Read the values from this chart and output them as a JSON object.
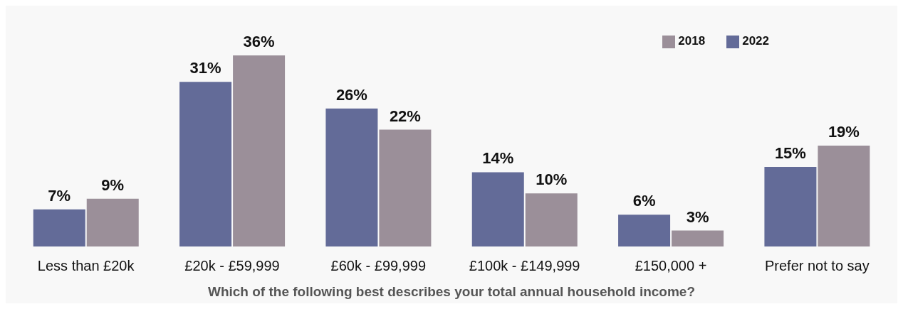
{
  "chart_data": {
    "type": "bar",
    "xlabel": "Which of the following best describes your total annual household income?",
    "categories": [
      "Less than £20k",
      "£20k - £59,999",
      "£60k - £99,999",
      "£100k - £149,999",
      "£150,000 +",
      "Prefer not to say"
    ],
    "series": [
      {
        "name": "2022",
        "color": "#636b98",
        "values": [
          7,
          31,
          26,
          14,
          6,
          15
        ],
        "value_labels": [
          "7%",
          "31%",
          "26%",
          "14%",
          "6%",
          "15%"
        ]
      },
      {
        "name": "2018",
        "color": "#9b8f99",
        "values": [
          9,
          36,
          22,
          10,
          3,
          19
        ],
        "value_labels": [
          "9%",
          "36%",
          "22%",
          "10%",
          "3%",
          "19%"
        ]
      }
    ],
    "legend": "top right",
    "grid": false
  }
}
